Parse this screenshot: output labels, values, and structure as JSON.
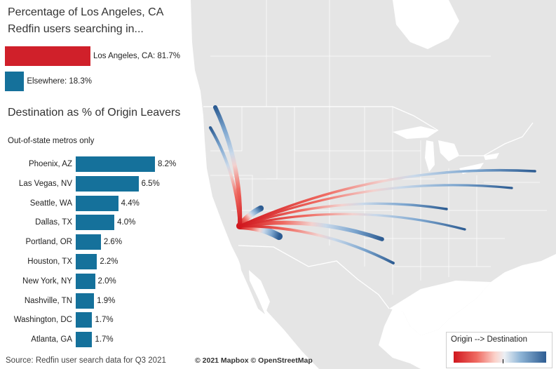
{
  "panel_title": "Percentage of Los Angeles, CA Redfin users searching in...",
  "share": {
    "local_label": "Los Angeles, CA: 81.7%",
    "local_pct": 81.7,
    "local_color": "#d0202a",
    "else_label": "Elsewhere: 18.3%",
    "else_pct": 18.3,
    "else_color": "#15719b"
  },
  "destination_title": "Destination as % of Origin Leavers",
  "destination_subtitle": "Out-of-state metros only",
  "source": "Source: Redfin user search data for Q3 2021",
  "map_credit": "© 2021 Mapbox  © OpenStreetMap",
  "legend": {
    "title": "Origin --> Destination",
    "start_color": "#d0171e",
    "end_color": "#2d5c92"
  },
  "map": {
    "origin": "Los Angeles, CA"
  },
  "chart_data": {
    "type": "bar",
    "orientation": "horizontal",
    "title": "Destination as % of Origin Leavers",
    "subtitle": "Out-of-state metros only",
    "categories": [
      "Phoenix, AZ",
      "Las Vegas, NV",
      "Seattle, WA",
      "Dallas, TX",
      "Portland, OR",
      "Houston, TX",
      "New York, NY",
      "Nashville, TN",
      "Washington, DC",
      "Atlanta, GA"
    ],
    "values": [
      8.2,
      6.5,
      4.4,
      4.0,
      2.6,
      2.2,
      2.0,
      1.9,
      1.7,
      1.7
    ],
    "labels": [
      "8.2%",
      "6.5%",
      "4.4%",
      "4.0%",
      "2.6%",
      "2.2%",
      "2.0%",
      "1.9%",
      "1.7%",
      "1.7%"
    ],
    "color": "#15719b",
    "xlim": [
      0,
      8.2
    ]
  }
}
